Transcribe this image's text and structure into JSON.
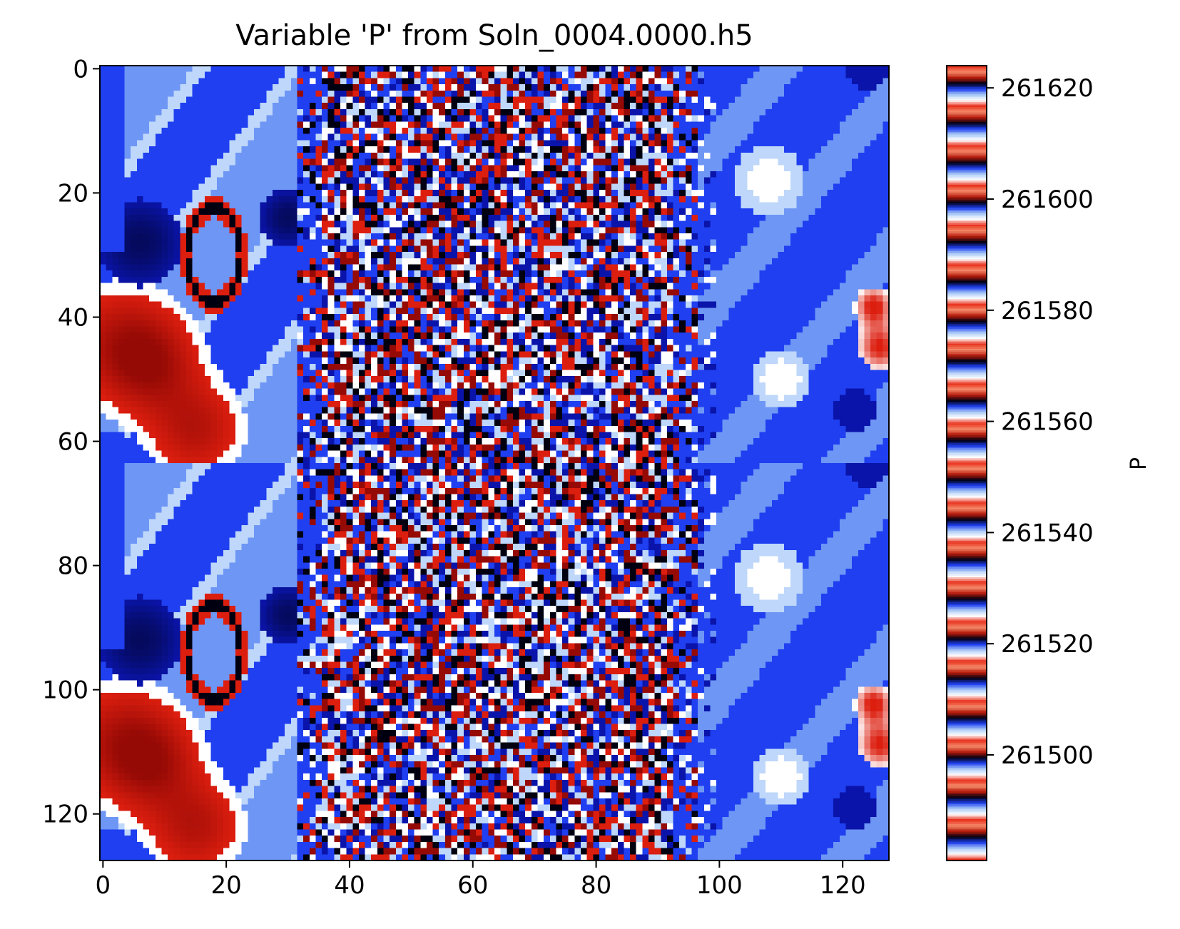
{
  "chart_data": {
    "type": "heatmap",
    "title": "Variable 'P' from Soln_0004.0000.h5",
    "colorbar_label": "P",
    "x_ticks": [
      "0",
      "20",
      "40",
      "60",
      "80",
      "100",
      "120"
    ],
    "y_ticks": [
      "0",
      "20",
      "40",
      "60",
      "80",
      "100",
      "120"
    ],
    "colorbar_ticks": [
      "261620",
      "261600",
      "261580",
      "261560",
      "261540",
      "261520",
      "261500"
    ],
    "x_tick_values": [
      0,
      20,
      40,
      60,
      80,
      100,
      120
    ],
    "y_tick_values": [
      0,
      20,
      40,
      60,
      80,
      100,
      120
    ],
    "colorbar_tick_values": [
      261620,
      261600,
      261580,
      261560,
      261540,
      261520,
      261500
    ],
    "xlim": [
      -0.5,
      127.5
    ],
    "ylim": [
      127.5,
      -0.5
    ],
    "grid_size": [
      128,
      128
    ],
    "colorbar_range": [
      261481,
      261624
    ],
    "colormap": "cyclic banded (red - white - light blue - blue - black), ~20 bands",
    "colormap_colors": [
      "#e8301c",
      "#ffffff",
      "#a9c9f6",
      "#1f3ff0",
      "#000010",
      "#b81c0c",
      "#f58a6a"
    ],
    "colorbar_position": "right",
    "grid": false
  }
}
